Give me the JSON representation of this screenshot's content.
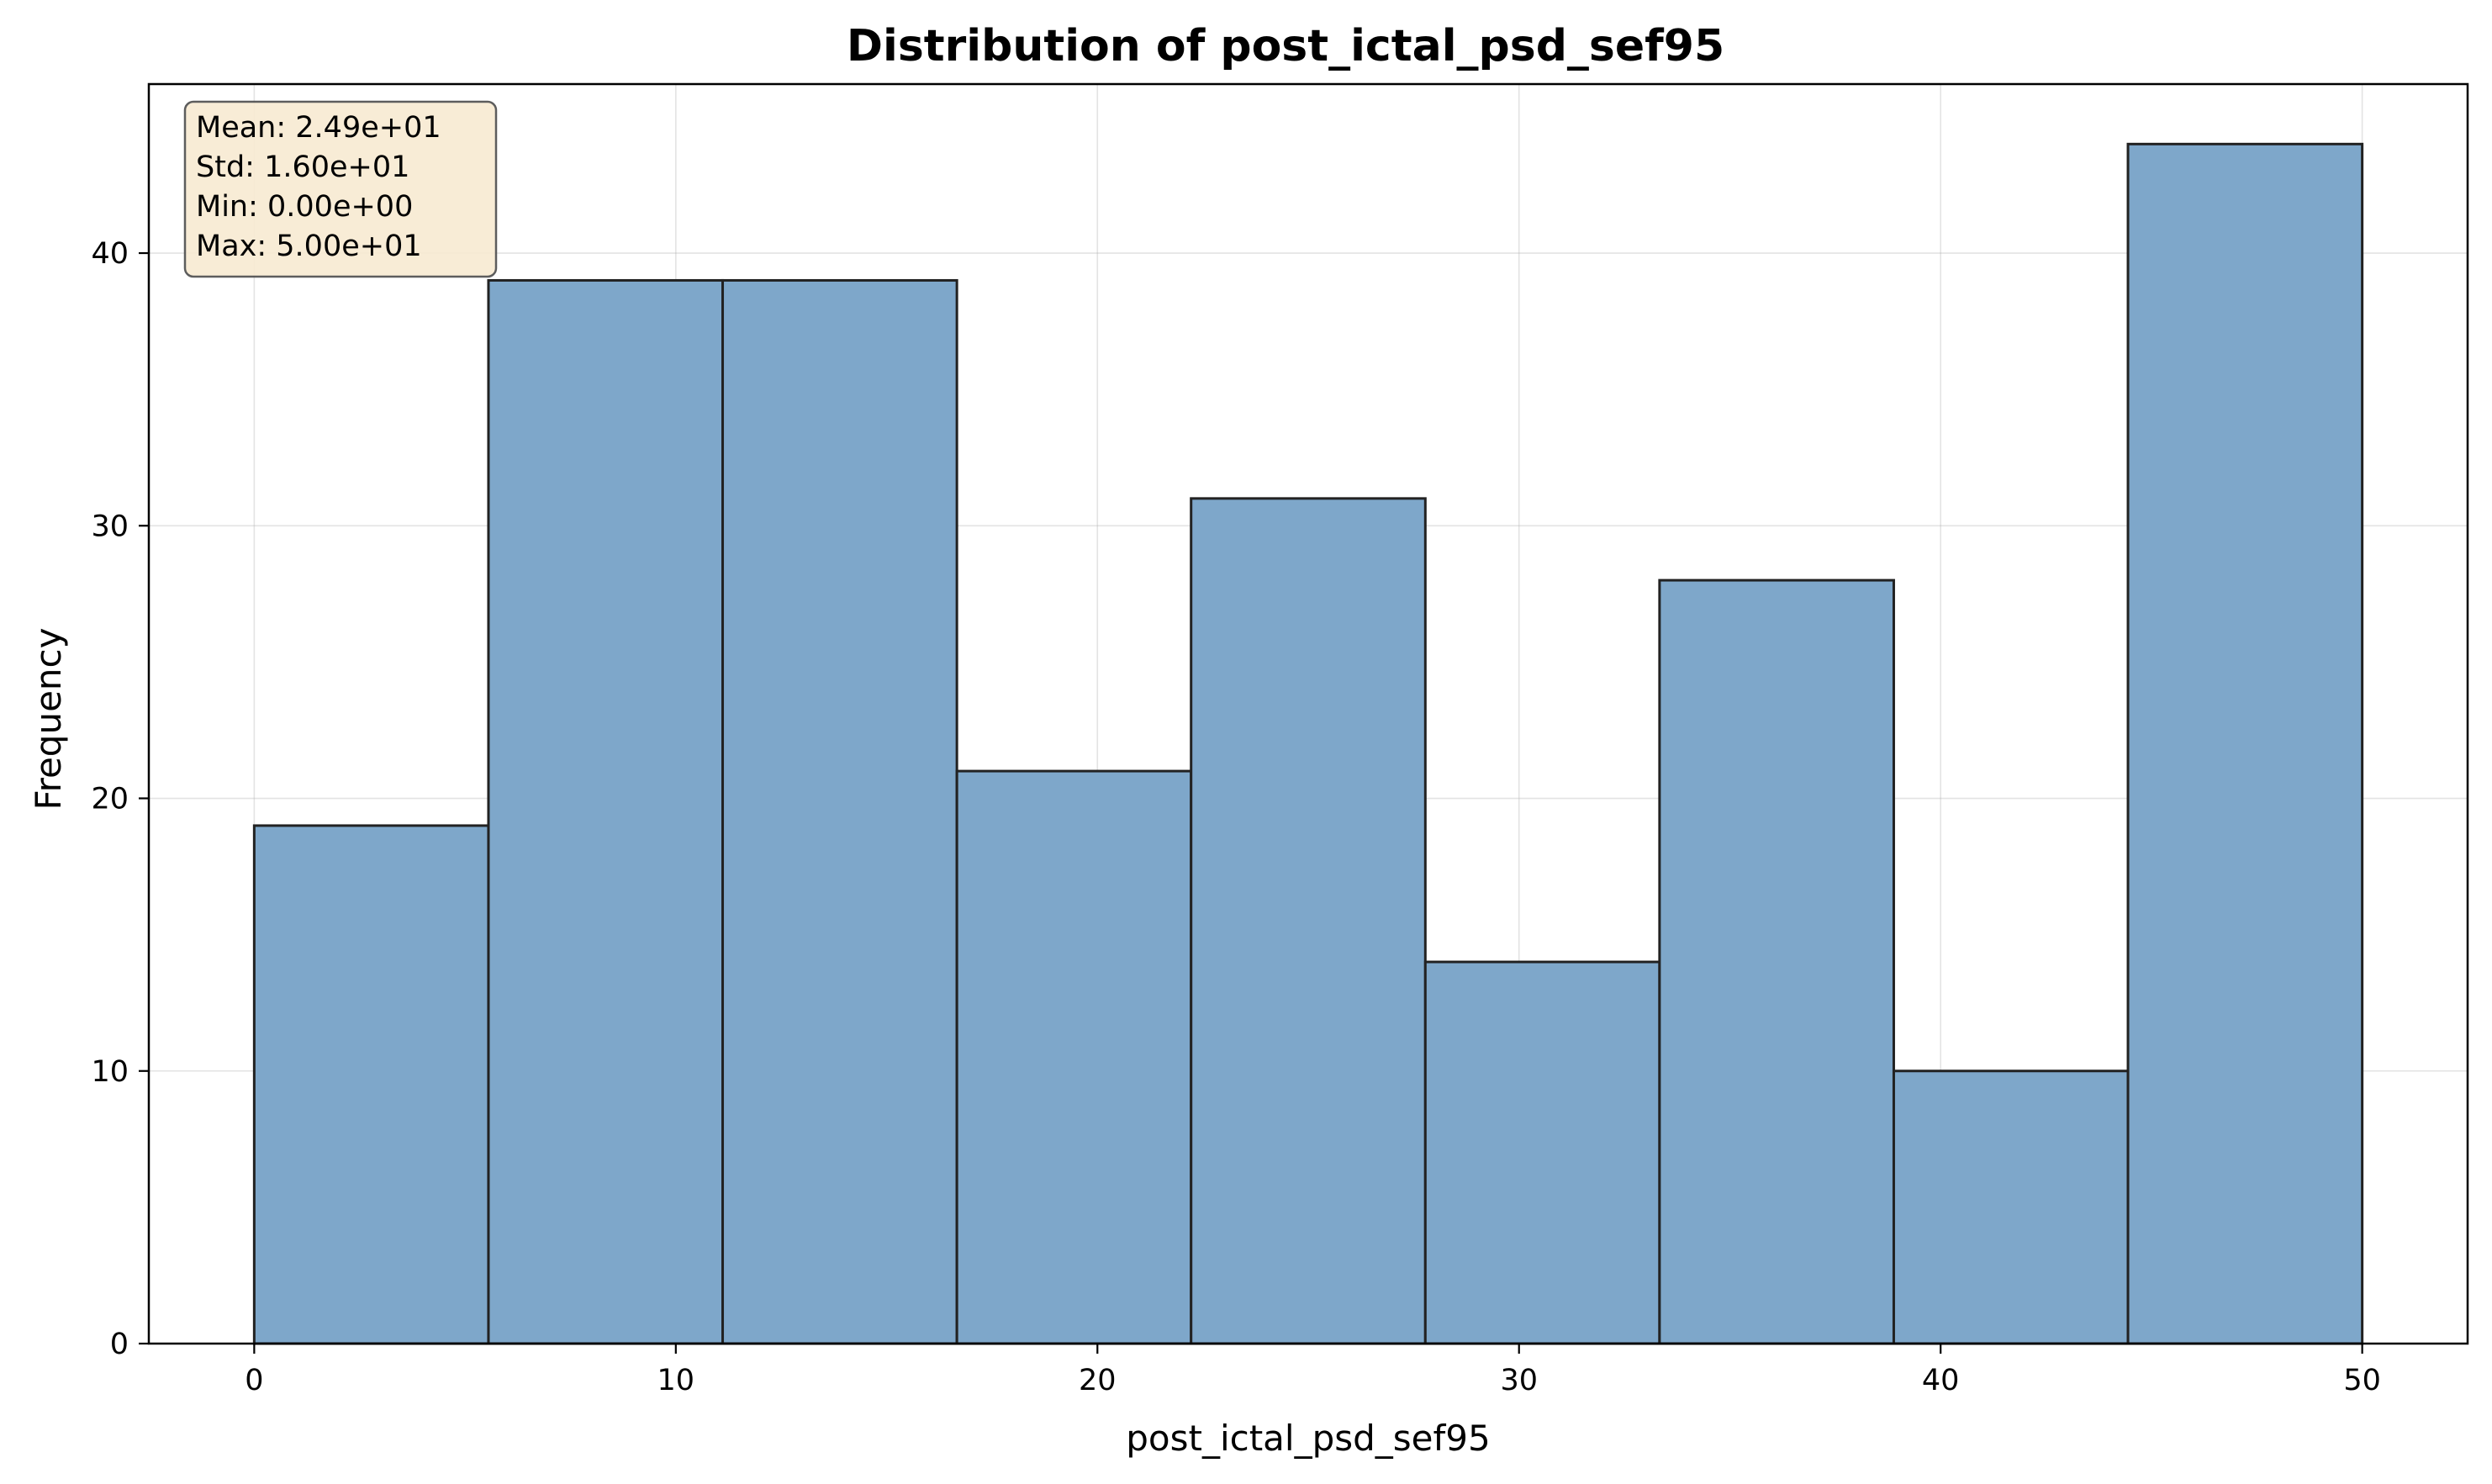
{
  "chart_data": {
    "type": "bar",
    "subtype": "histogram",
    "title": "Distribution of post_ictal_psd_sef95",
    "xlabel": "post_ictal_psd_sef95",
    "ylabel": "Frequency",
    "bin_edges": [
      0,
      5.556,
      11.111,
      16.667,
      22.222,
      27.778,
      33.333,
      38.889,
      44.444,
      50
    ],
    "values": [
      19,
      39,
      39,
      21,
      31,
      14,
      28,
      10,
      44
    ],
    "xlim": [
      -2.5,
      52.5
    ],
    "ylim": [
      0,
      46.2
    ],
    "xticks": [
      0,
      10,
      20,
      30,
      40,
      50
    ],
    "yticks": [
      0,
      10,
      20,
      30,
      40
    ],
    "grid": true,
    "bar_color": "#7ea7ca",
    "edge_color": "#222222",
    "stats_box": {
      "placement": "top-left",
      "background": "#f8ebd4",
      "lines": [
        "Mean: 2.49e+01",
        "Std: 1.60e+01",
        "Min: 0.00e+00",
        "Max: 5.00e+01"
      ]
    }
  }
}
